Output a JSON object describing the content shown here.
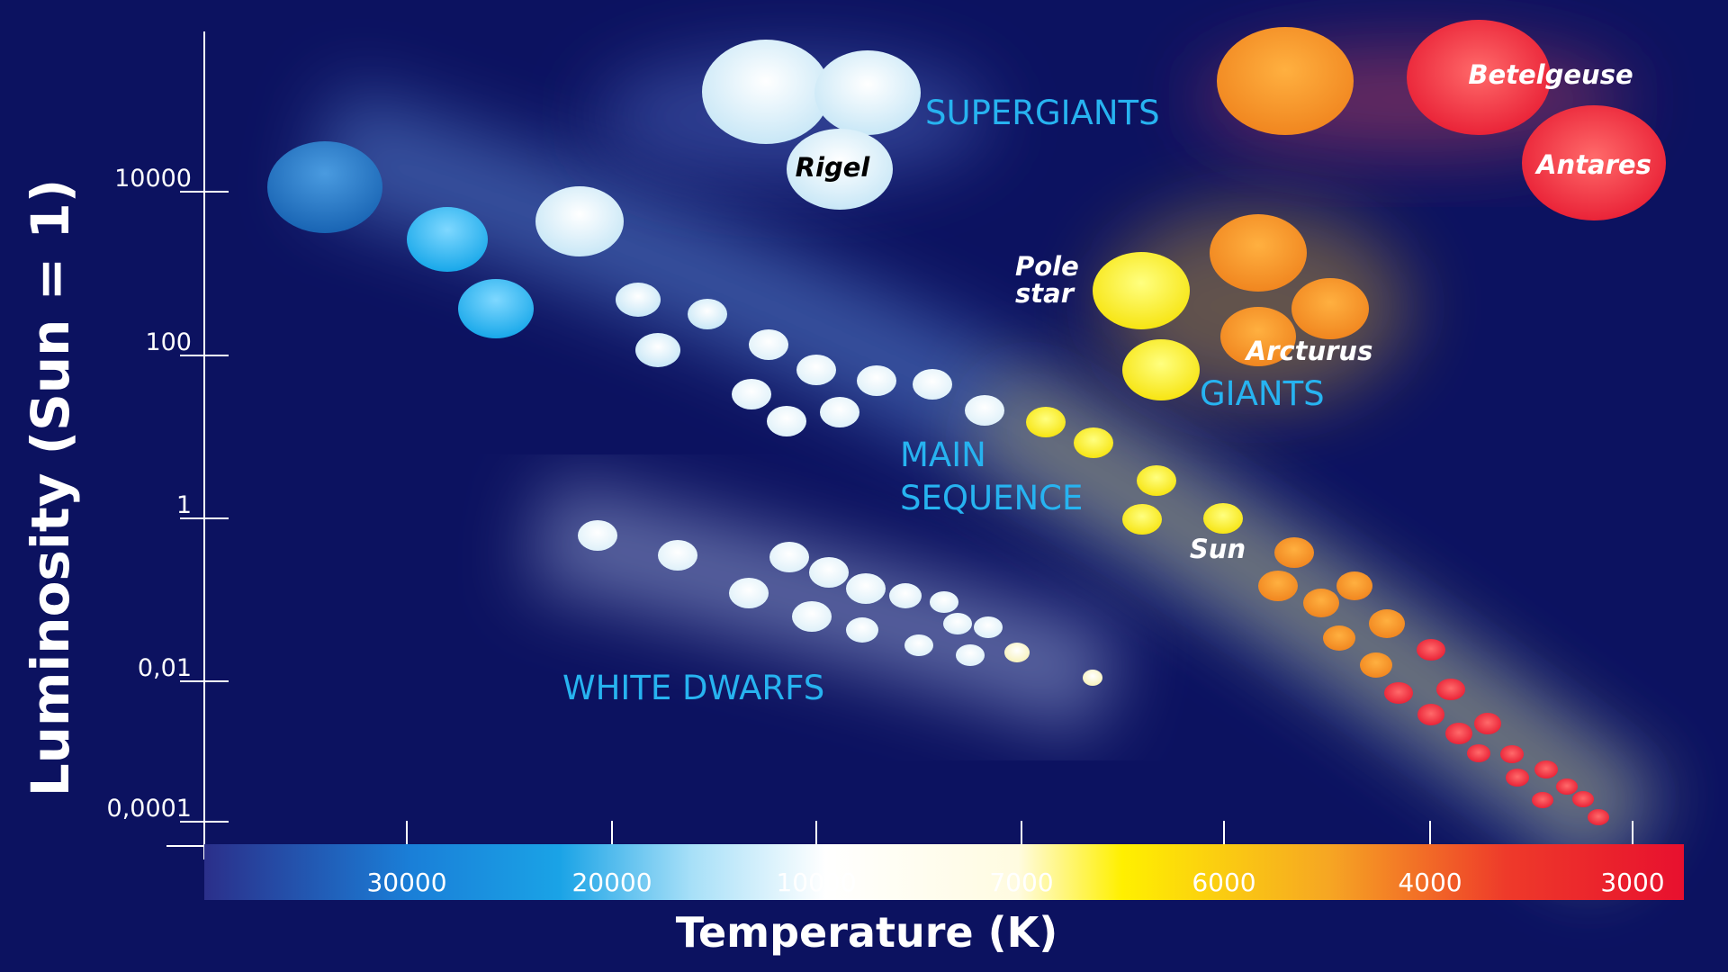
{
  "chart_data": {
    "type": "scatter",
    "xlabel": "Temperature (K)",
    "ylabel": "Luminosity (Sun = 1)",
    "x_ticks": [
      "30000",
      "20000",
      "10000",
      "7000",
      "6000",
      "4000",
      "3000"
    ],
    "y_ticks": [
      "10000",
      "100",
      "1",
      "0,01",
      "0,0001"
    ],
    "y_scale": "log",
    "colorbar": [
      "#2b2f8a",
      "#1aa3e6",
      "#a8e0f8",
      "#ffffff",
      "#fffbe0",
      "#fff000",
      "#f6a623",
      "#ee3a2a",
      "#e8102e"
    ],
    "regions": [
      {
        "label": "SUPERGIANTS"
      },
      {
        "label": "GIANTS"
      },
      {
        "label": "MAIN SEQUENCE"
      },
      {
        "label": "WHITE DWARFS"
      }
    ],
    "named_stars": [
      {
        "name": "Rigel",
        "color": "#e6f3fb"
      },
      {
        "name": "Betelgeuse",
        "color": "#e8162a"
      },
      {
        "name": "Antares",
        "color": "#e8162a"
      },
      {
        "name": "Pole star",
        "color": "#fff200"
      },
      {
        "name": "Arcturus",
        "color": "#f59224"
      },
      {
        "name": "Sun",
        "color": "#fff200"
      }
    ]
  }
}
